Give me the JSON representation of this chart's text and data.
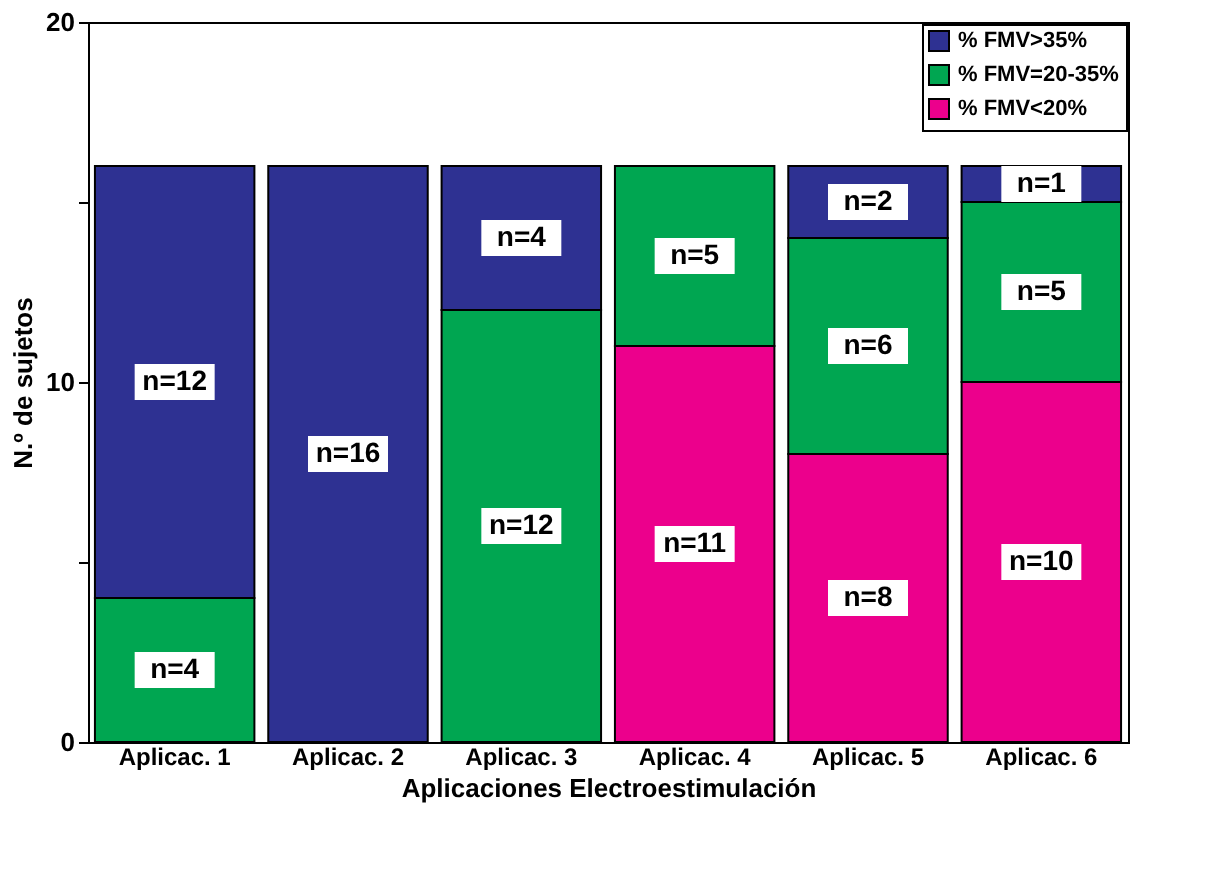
{
  "chart_data": {
    "type": "bar",
    "stacked": true,
    "xlabel": "Aplicaciones Electroestimulación",
    "ylabel": "N.º de sujetos",
    "categories": [
      "Aplicac. 1",
      "Aplicac. 2",
      "Aplicac. 3",
      "Aplicac. 4",
      "Aplicac. 5",
      "Aplicac. 6"
    ],
    "series": [
      {
        "name": "% FMV<20%",
        "color": "#ec008c",
        "values": [
          0,
          0,
          0,
          11,
          8,
          10
        ],
        "value_labels": [
          null,
          null,
          null,
          "n=11",
          "n=8",
          "n=10"
        ]
      },
      {
        "name": "% FMV=20-35%",
        "color": "#00a651",
        "values": [
          4,
          0,
          12,
          5,
          6,
          5
        ],
        "value_labels": [
          "n=4",
          null,
          "n=12",
          "n=5",
          "n=6",
          "n=5"
        ]
      },
      {
        "name": "% FMV>35%",
        "color": "#2e3192",
        "values": [
          12,
          16,
          4,
          0,
          2,
          1
        ],
        "value_labels": [
          "n=12",
          "n=16",
          "n=4",
          null,
          "n=2",
          "n=1"
        ]
      }
    ],
    "ylim": [
      0,
      20
    ],
    "yticks": [
      0,
      {
        "value": 5,
        "label": null
      },
      10,
      {
        "value": 15,
        "label": null
      },
      20
    ],
    "grid": false,
    "legend": "top right"
  }
}
